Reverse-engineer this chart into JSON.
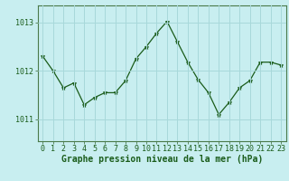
{
  "x": [
    0,
    1,
    2,
    3,
    4,
    5,
    6,
    7,
    8,
    9,
    10,
    11,
    12,
    13,
    14,
    15,
    16,
    17,
    18,
    19,
    20,
    21,
    22,
    23
  ],
  "y": [
    1012.3,
    1012.0,
    1011.65,
    1011.75,
    1011.3,
    1011.45,
    1011.55,
    1011.55,
    1011.8,
    1012.25,
    1012.5,
    1012.78,
    1013.02,
    1012.6,
    1012.18,
    1011.82,
    1011.55,
    1011.1,
    1011.35,
    1011.65,
    1011.8,
    1012.18,
    1012.18,
    1012.12
  ],
  "line_color": "#1a5c1a",
  "marker": "*",
  "marker_size": 3.5,
  "bg_color": "#c8eef0",
  "grid_color": "#a8d8da",
  "axis_label_color": "#1a5c1a",
  "xlabel": "Graphe pression niveau de la mer (hPa)",
  "yticks": [
    1011,
    1012,
    1013
  ],
  "ylim": [
    1010.55,
    1013.35
  ],
  "xlim": [
    -0.5,
    23.5
  ],
  "border_color": "#4a7a4a",
  "tick_fontsize": 6,
  "xlabel_fontsize": 7
}
